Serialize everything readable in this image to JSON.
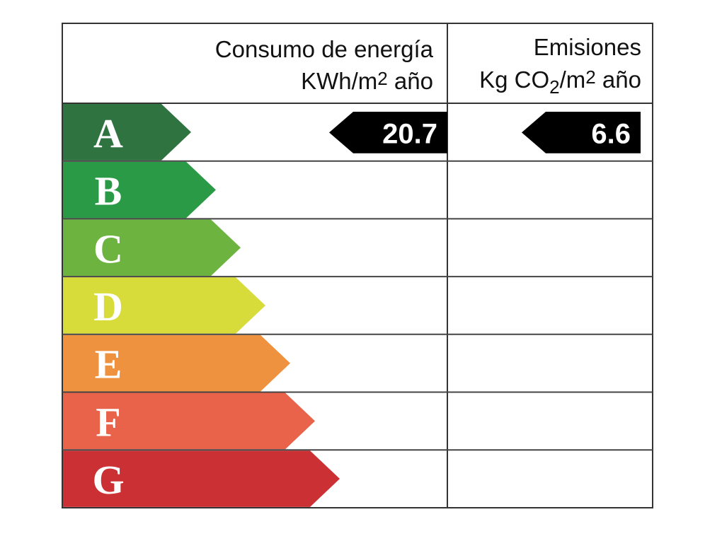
{
  "header": {
    "energy_title": "Consumo de energía",
    "energy_unit_prefix": "KWh/m",
    "energy_unit_sup": "2",
    "energy_unit_suffix": " año",
    "emissions_title": "Emisiones",
    "emissions_unit_prefix": "Kg CO",
    "emissions_unit_sub": "2",
    "emissions_unit_mid": "/m",
    "emissions_unit_sup": "2",
    "emissions_unit_suffix": " año"
  },
  "ratings": [
    {
      "letter": "A",
      "color": "#2e7340"
    },
    {
      "letter": "B",
      "color": "#2b9a47"
    },
    {
      "letter": "C",
      "color": "#6db33f"
    },
    {
      "letter": "D",
      "color": "#d8dc3a"
    },
    {
      "letter": "E",
      "color": "#ef9240"
    },
    {
      "letter": "F",
      "color": "#e9634b"
    },
    {
      "letter": "G",
      "color": "#cb3134"
    }
  ],
  "energy": {
    "rating": "A",
    "value": "20.7"
  },
  "emissions": {
    "rating": "A",
    "value": "6.6"
  },
  "marker_color": "#000000"
}
